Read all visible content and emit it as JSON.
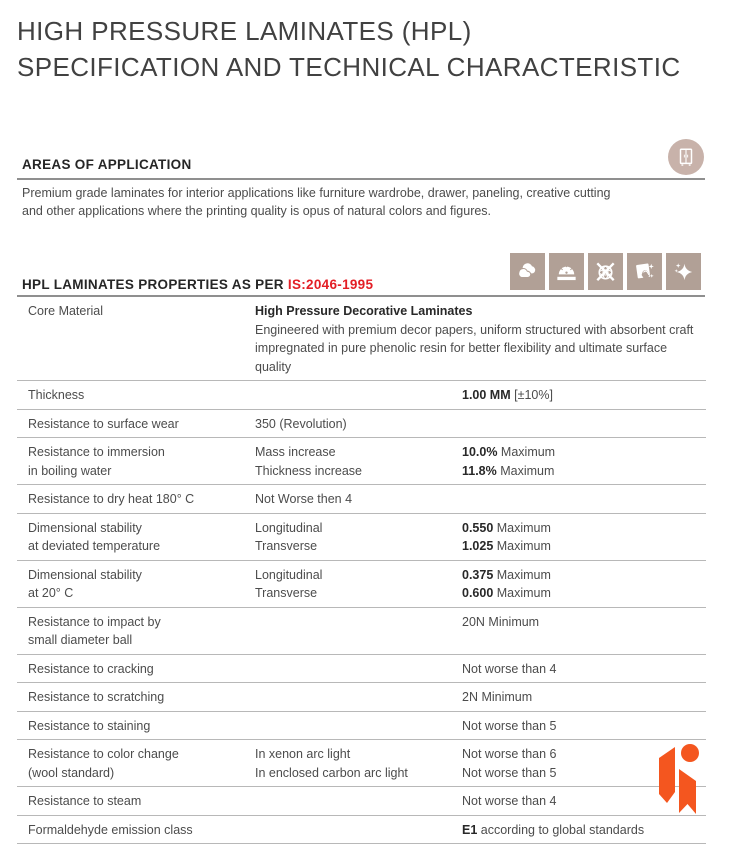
{
  "title": {
    "line1": "HIGH PRESSURE LAMINATES (HPL)",
    "line2": "SPECIFICATION AND TECHNICAL CHARACTERISTIC"
  },
  "areas": {
    "heading": "AREAS OF APPLICATION",
    "body": "Premium grade laminates for interior applications like furniture wardrobe, drawer, paneling, creative cutting and other applications where the printing quality is opus of natural colors and figures.",
    "icon": "wardrobe-icon"
  },
  "properties": {
    "heading_prefix": "HPL LAMINATES PROPERTIES AS PER ",
    "standard": "IS:2046-1995",
    "icons": [
      "cloud-icon",
      "abrasion-disc-icon",
      "crossed-yarn-icon",
      "wipe-clean-icon",
      "sparkle-icon"
    ]
  },
  "table": {
    "rows": [
      {
        "c1": [
          "Core Material"
        ],
        "wide": {
          "title": "High Pressure Decorative Laminates",
          "desc1": "Engineered with premium decor papers, uniform structured with absorbent craft",
          "desc2": "impregnated in pure phenolic resin for better flexibility and ultimate surface quality"
        }
      },
      {
        "c1": [
          "Thickness"
        ],
        "c2": [],
        "c3": [
          {
            "b": "1.00 MM",
            "r": " [±10%]"
          }
        ]
      },
      {
        "c1": [
          "Resistance to surface wear"
        ],
        "c2": [
          "350 (Revolution)"
        ],
        "c3": []
      },
      {
        "c1": [
          "Resistance to immersion",
          "in boiling water"
        ],
        "c2": [
          "Mass increase",
          "Thickness increase"
        ],
        "c3": [
          {
            "b": "10.0%",
            "r": " Maximum"
          },
          {
            "b": "11.8%",
            "r": " Maximum"
          }
        ]
      },
      {
        "c1": [
          "Resistance to dry heat 180° C"
        ],
        "c2": [
          "Not Worse then 4"
        ],
        "c3": []
      },
      {
        "c1": [
          "Dimensional stability",
          "at deviated temperature"
        ],
        "c2": [
          "Longitudinal",
          "Transverse"
        ],
        "c3": [
          {
            "b": "0.550",
            "r": " Maximum"
          },
          {
            "b": "1.025",
            "r": " Maximum"
          }
        ]
      },
      {
        "c1": [
          "Dimensional stability",
          "at 20° C"
        ],
        "c2": [
          "Longitudinal",
          "Transverse"
        ],
        "c3": [
          {
            "b": "0.375",
            "r": " Maximum"
          },
          {
            "b": "0.600",
            "r": " Maximum"
          }
        ]
      },
      {
        "c1": [
          "Resistance to impact by",
          "small diameter ball"
        ],
        "c2": [],
        "c3": [
          {
            "b": "",
            "r": "20N Minimum"
          }
        ]
      },
      {
        "c1": [
          "Resistance to cracking"
        ],
        "c2": [],
        "c3": [
          {
            "b": "",
            "r": "Not worse than 4"
          }
        ]
      },
      {
        "c1": [
          "Resistance to scratching"
        ],
        "c2": [],
        "c3": [
          {
            "b": "",
            "r": "2N Minimum"
          }
        ]
      },
      {
        "c1": [
          "Resistance to staining"
        ],
        "c2": [],
        "c3": [
          {
            "b": "",
            "r": "Not worse than 5"
          }
        ]
      },
      {
        "c1": [
          "Resistance to color change",
          "(wool standard)"
        ],
        "c2": [
          "In xenon arc light",
          "In enclosed carbon arc light"
        ],
        "c3": [
          {
            "b": "",
            "r": "Not worse than 6"
          },
          {
            "b": "",
            "r": "Not worse than 5"
          }
        ]
      },
      {
        "c1": [
          "Resistance to steam"
        ],
        "c2": [],
        "c3": [
          {
            "b": "",
            "r": "Not worse than 4"
          }
        ]
      },
      {
        "c1": [
          "Formaldehyde emission class"
        ],
        "c2": [],
        "c3": [
          {
            "b": "E1",
            "r": "  according to global standards"
          }
        ]
      }
    ]
  },
  "colors": {
    "accent_red": "#e31e25",
    "icon_tan": "#b1a096",
    "circle_tan": "#c8b2aa",
    "logo_orange": "#f4561f"
  }
}
